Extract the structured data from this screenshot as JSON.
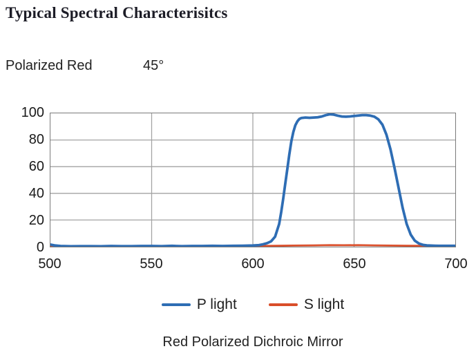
{
  "header": {
    "title": "Typical Spectral Characterisitcs",
    "product_label": "Polarized Red",
    "angle": "45°"
  },
  "caption": "Red Polarized Dichroic Mirror",
  "colors": {
    "p_light": "#2E6DB4",
    "s_light": "#D94E2A",
    "grid": "#a3a3a3",
    "plot_border": "#7a7a7a",
    "text": "#1a1a1a"
  },
  "chart_data": {
    "type": "line",
    "title": "",
    "xlabel": "",
    "ylabel": "",
    "xlim": [
      500,
      700
    ],
    "ylim": [
      0,
      100
    ],
    "x_ticks": [
      500,
      550,
      600,
      650,
      700
    ],
    "y_ticks": [
      0,
      20,
      40,
      60,
      80,
      100
    ],
    "grid": true,
    "legend_position": "bottom",
    "series": [
      {
        "name": "P light",
        "color": "#2E6DB4",
        "points": [
          [
            500,
            1.6
          ],
          [
            502,
            1.0
          ],
          [
            505,
            0.5
          ],
          [
            510,
            0.3
          ],
          [
            515,
            0.4
          ],
          [
            520,
            0.4
          ],
          [
            525,
            0.3
          ],
          [
            530,
            0.5
          ],
          [
            535,
            0.4
          ],
          [
            540,
            0.4
          ],
          [
            545,
            0.5
          ],
          [
            550,
            0.5
          ],
          [
            555,
            0.4
          ],
          [
            560,
            0.6
          ],
          [
            565,
            0.4
          ],
          [
            570,
            0.5
          ],
          [
            575,
            0.5
          ],
          [
            580,
            0.6
          ],
          [
            585,
            0.5
          ],
          [
            590,
            0.6
          ],
          [
            595,
            0.7
          ],
          [
            600,
            0.9
          ],
          [
            603,
            1.2
          ],
          [
            605,
            1.8
          ],
          [
            607,
            2.6
          ],
          [
            609,
            4.0
          ],
          [
            611,
            7.5
          ],
          [
            613,
            17
          ],
          [
            614,
            26
          ],
          [
            615,
            36
          ],
          [
            616,
            47
          ],
          [
            617,
            58
          ],
          [
            618,
            69
          ],
          [
            619,
            79
          ],
          [
            620,
            86
          ],
          [
            621,
            91
          ],
          [
            622,
            94
          ],
          [
            623,
            95.8
          ],
          [
            624,
            96.5
          ],
          [
            626,
            96.8
          ],
          [
            628,
            96.6
          ],
          [
            630,
            96.8
          ],
          [
            632,
            97.0
          ],
          [
            634,
            97.6
          ],
          [
            636,
            98.6
          ],
          [
            638,
            99.3
          ],
          [
            640,
            99.0
          ],
          [
            642,
            98.2
          ],
          [
            644,
            97.6
          ],
          [
            646,
            97.5
          ],
          [
            648,
            97.7
          ],
          [
            650,
            98.0
          ],
          [
            652,
            98.3
          ],
          [
            654,
            98.6
          ],
          [
            656,
            98.6
          ],
          [
            658,
            98.3
          ],
          [
            660,
            97.5
          ],
          [
            662,
            95.5
          ],
          [
            664,
            91.5
          ],
          [
            666,
            84
          ],
          [
            668,
            73
          ],
          [
            670,
            59
          ],
          [
            672,
            44
          ],
          [
            674,
            29
          ],
          [
            676,
            17
          ],
          [
            678,
            9
          ],
          [
            680,
            4.5
          ],
          [
            682,
            2.4
          ],
          [
            684,
            1.4
          ],
          [
            686,
            1.0
          ],
          [
            688,
            0.8
          ],
          [
            690,
            0.7
          ],
          [
            692,
            0.6
          ],
          [
            695,
            0.6
          ],
          [
            700,
            0.6
          ]
        ]
      },
      {
        "name": "S light",
        "color": "#D94E2A",
        "points": [
          [
            500,
            0.5
          ],
          [
            510,
            0.4
          ],
          [
            520,
            0.5
          ],
          [
            530,
            0.4
          ],
          [
            540,
            0.5
          ],
          [
            550,
            0.4
          ],
          [
            560,
            0.5
          ],
          [
            570,
            0.4
          ],
          [
            580,
            0.5
          ],
          [
            590,
            0.5
          ],
          [
            600,
            0.5
          ],
          [
            610,
            0.6
          ],
          [
            620,
            0.8
          ],
          [
            630,
            1.0
          ],
          [
            638,
            1.2
          ],
          [
            645,
            1.1
          ],
          [
            652,
            1.2
          ],
          [
            660,
            1.0
          ],
          [
            668,
            0.8
          ],
          [
            676,
            0.7
          ],
          [
            684,
            0.6
          ],
          [
            692,
            0.6
          ],
          [
            700,
            0.6
          ]
        ]
      }
    ]
  }
}
